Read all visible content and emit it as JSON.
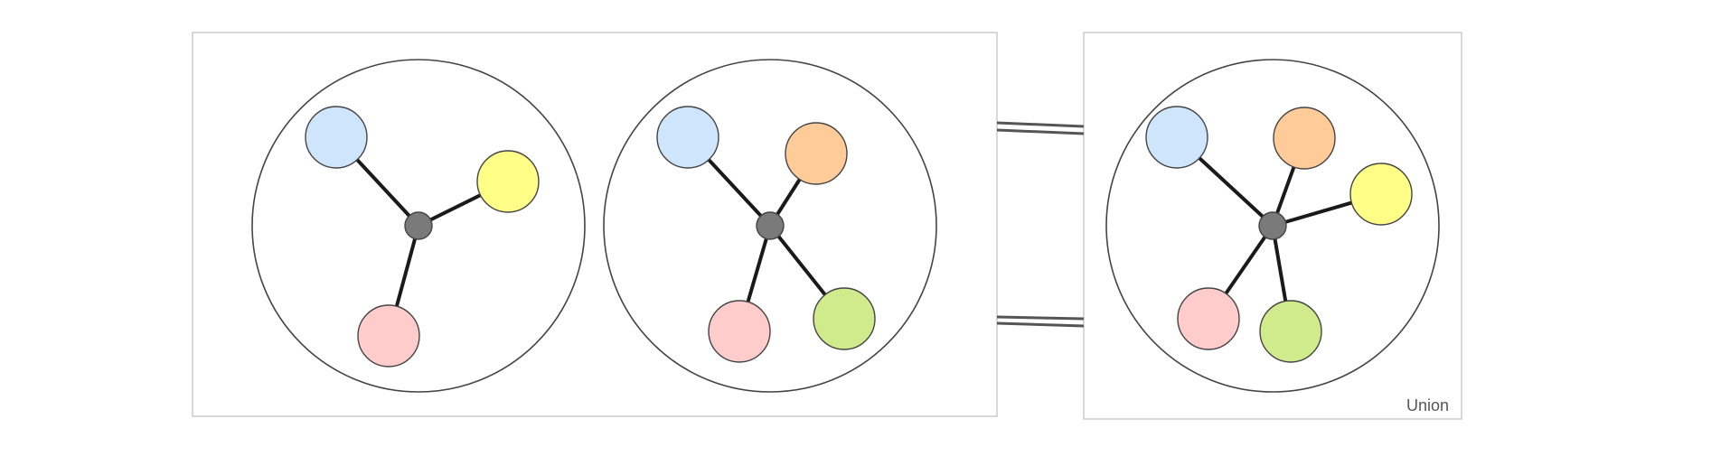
{
  "colors": {
    "blue": "#cfe5fc",
    "yellow": "#ffff88",
    "orange": "#ffcc99",
    "green": "#d0eb8c",
    "pink": "#ffcccc",
    "hub": "#7a7a7a",
    "frame_border": "#bfbfbf",
    "circle_stroke": "#444444",
    "edge": "#1a1a1a",
    "connector": "#555555"
  },
  "panels": [
    {
      "id": "left-frame",
      "label": "",
      "graphs": [
        {
          "id": "graph-a",
          "leaves": [
            "blue",
            "yellow",
            "pink"
          ]
        },
        {
          "id": "graph-b",
          "leaves": [
            "blue",
            "orange",
            "pink",
            "green"
          ]
        }
      ]
    },
    {
      "id": "union-frame",
      "label": "Union",
      "graphs": [
        {
          "id": "graph-union",
          "leaves": [
            "blue",
            "orange",
            "yellow",
            "pink",
            "green"
          ]
        }
      ]
    }
  ]
}
